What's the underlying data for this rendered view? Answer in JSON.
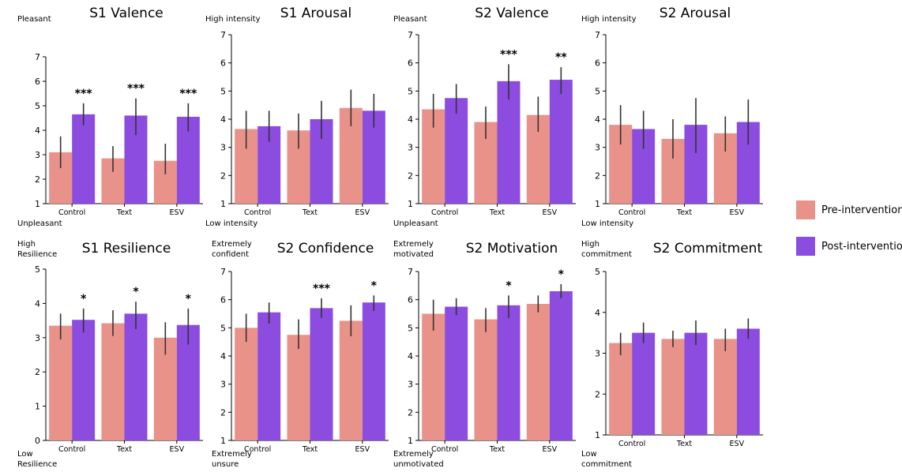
{
  "legend": {
    "pre": {
      "label": "Pre-intervention",
      "color": "#e9928a"
    },
    "post": {
      "label": "Post-intervention",
      "color": "#8b4cdf"
    }
  },
  "chart_data": [
    {
      "type": "bar",
      "title": "S1 Valence",
      "top_label": "Pleasant",
      "bottom_label": "Unpleasant",
      "ylim": [
        1,
        7
      ],
      "yticks": [
        1,
        2,
        3,
        4,
        5,
        6,
        7
      ],
      "categories": [
        "Control",
        "Text",
        "ESV"
      ],
      "series": [
        {
          "name": "Pre-intervention",
          "values": [
            3.1,
            2.85,
            2.75
          ],
          "err_low": [
            2.45,
            2.3,
            2.2
          ],
          "err_high": [
            3.75,
            3.35,
            3.45
          ]
        },
        {
          "name": "Post-intervention",
          "values": [
            4.65,
            4.6,
            4.55
          ],
          "err_low": [
            4.2,
            3.8,
            3.95
          ],
          "err_high": [
            5.1,
            5.3,
            5.1
          ]
        }
      ],
      "significance": [
        "***",
        "***",
        "***"
      ]
    },
    {
      "type": "bar",
      "title": "S1 Arousal",
      "top_label": "High intensity",
      "bottom_label": "Low intensity",
      "ylim": [
        1,
        7
      ],
      "yticks": [
        1,
        2,
        3,
        4,
        5,
        6,
        7
      ],
      "categories": [
        "Control",
        "Text",
        "ESV"
      ],
      "series": [
        {
          "name": "Pre-intervention",
          "values": [
            3.65,
            3.6,
            4.4
          ],
          "err_low": [
            2.95,
            2.95,
            3.75
          ],
          "err_high": [
            4.3,
            4.2,
            5.05
          ]
        },
        {
          "name": "Post-intervention",
          "values": [
            3.75,
            4.0,
            4.3
          ],
          "err_low": [
            3.2,
            3.3,
            3.7
          ],
          "err_high": [
            4.3,
            4.65,
            4.9
          ]
        }
      ],
      "significance": [
        "",
        "",
        ""
      ]
    },
    {
      "type": "bar",
      "title": "S2 Valence",
      "top_label": "Pleasant",
      "bottom_label": "Unpleasant",
      "ylim": [
        1,
        7
      ],
      "yticks": [
        1,
        2,
        3,
        4,
        5,
        6,
        7
      ],
      "categories": [
        "Control",
        "Text",
        "ESV"
      ],
      "series": [
        {
          "name": "Pre-intervention",
          "values": [
            4.35,
            3.9,
            4.15
          ],
          "err_low": [
            3.7,
            3.3,
            3.55
          ],
          "err_high": [
            4.9,
            4.45,
            4.8
          ]
        },
        {
          "name": "Post-intervention",
          "values": [
            4.75,
            5.35,
            5.4
          ],
          "err_low": [
            4.2,
            4.7,
            4.9
          ],
          "err_high": [
            5.25,
            5.95,
            5.85
          ]
        }
      ],
      "significance": [
        "",
        "***",
        "**"
      ]
    },
    {
      "type": "bar",
      "title": "S2 Arousal",
      "top_label": "High intensity",
      "bottom_label": "Low intensity",
      "ylim": [
        1,
        7
      ],
      "yticks": [
        1,
        2,
        3,
        4,
        5,
        6,
        7
      ],
      "categories": [
        "Control",
        "Text",
        "ESV"
      ],
      "series": [
        {
          "name": "Pre-intervention",
          "values": [
            3.8,
            3.3,
            3.5
          ],
          "err_low": [
            3.1,
            2.6,
            2.85
          ],
          "err_high": [
            4.5,
            4.0,
            4.1
          ]
        },
        {
          "name": "Post-intervention",
          "values": [
            3.65,
            3.8,
            3.9
          ],
          "err_low": [
            2.95,
            2.8,
            3.1
          ],
          "err_high": [
            4.3,
            4.75,
            4.7
          ]
        }
      ],
      "significance": [
        "",
        "",
        ""
      ]
    },
    {
      "type": "bar",
      "title": "S1 Resilience",
      "top_label": "High\nResilience",
      "bottom_label": "Low\nResilience",
      "ylim": [
        0,
        5
      ],
      "yticks": [
        0,
        1,
        2,
        3,
        4,
        5
      ],
      "categories": [
        "Control",
        "Text",
        "ESV"
      ],
      "series": [
        {
          "name": "Pre-intervention",
          "values": [
            3.35,
            3.42,
            3.0
          ],
          "err_low": [
            2.95,
            3.05,
            2.5
          ],
          "err_high": [
            3.7,
            3.8,
            3.45
          ]
        },
        {
          "name": "Post-intervention",
          "values": [
            3.52,
            3.7,
            3.37
          ],
          "err_low": [
            3.15,
            3.25,
            2.8
          ],
          "err_high": [
            3.85,
            4.05,
            3.85
          ]
        }
      ],
      "significance": [
        "*",
        "*",
        "*"
      ]
    },
    {
      "type": "bar",
      "title": "S2 Confidence",
      "top_label": "Extremely\nconfident",
      "bottom_label": "Extremely\nunsure",
      "ylim": [
        1,
        7
      ],
      "yticks": [
        1,
        2,
        3,
        4,
        5,
        6,
        7
      ],
      "categories": [
        "Control",
        "Text",
        "ESV"
      ],
      "series": [
        {
          "name": "Pre-intervention",
          "values": [
            5.0,
            4.75,
            5.25
          ],
          "err_low": [
            4.5,
            4.25,
            4.7
          ],
          "err_high": [
            5.5,
            5.3,
            5.8
          ]
        },
        {
          "name": "Post-intervention",
          "values": [
            5.55,
            5.7,
            5.9
          ],
          "err_low": [
            5.15,
            5.35,
            5.6
          ],
          "err_high": [
            5.9,
            6.05,
            6.15
          ]
        }
      ],
      "significance": [
        "",
        "***",
        "*"
      ]
    },
    {
      "type": "bar",
      "title": "S2 Motivation",
      "top_label": "Extremely\nmotivated",
      "bottom_label": "Extremely\nunmotivated",
      "ylim": [
        1,
        7
      ],
      "yticks": [
        1,
        2,
        3,
        4,
        5,
        6,
        7
      ],
      "categories": [
        "Control",
        "Text",
        "ESV"
      ],
      "series": [
        {
          "name": "Pre-intervention",
          "values": [
            5.5,
            5.3,
            5.85
          ],
          "err_low": [
            4.9,
            4.85,
            5.55
          ],
          "err_high": [
            6.0,
            5.7,
            6.15
          ]
        },
        {
          "name": "Post-intervention",
          "values": [
            5.75,
            5.8,
            6.3
          ],
          "err_low": [
            5.45,
            5.35,
            6.05
          ],
          "err_high": [
            6.05,
            6.15,
            6.55
          ]
        }
      ],
      "significance": [
        "",
        "*",
        "*"
      ]
    },
    {
      "type": "bar",
      "title": "S2 Commitment",
      "top_label": "High\ncommitment",
      "bottom_label": "Low\ncommitment",
      "ylim": [
        1,
        5
      ],
      "yticks": [
        1,
        2,
        3,
        4,
        5
      ],
      "categories": [
        "Control",
        "Text",
        "ESV"
      ],
      "series": [
        {
          "name": "Pre-intervention",
          "values": [
            3.25,
            3.35,
            3.35
          ],
          "err_low": [
            2.95,
            3.15,
            3.05
          ],
          "err_high": [
            3.5,
            3.55,
            3.6
          ]
        },
        {
          "name": "Post-intervention",
          "values": [
            3.5,
            3.5,
            3.6
          ],
          "err_low": [
            3.25,
            3.2,
            3.35
          ],
          "err_high": [
            3.75,
            3.8,
            3.85
          ]
        }
      ],
      "significance": [
        "",
        "",
        ""
      ]
    }
  ]
}
